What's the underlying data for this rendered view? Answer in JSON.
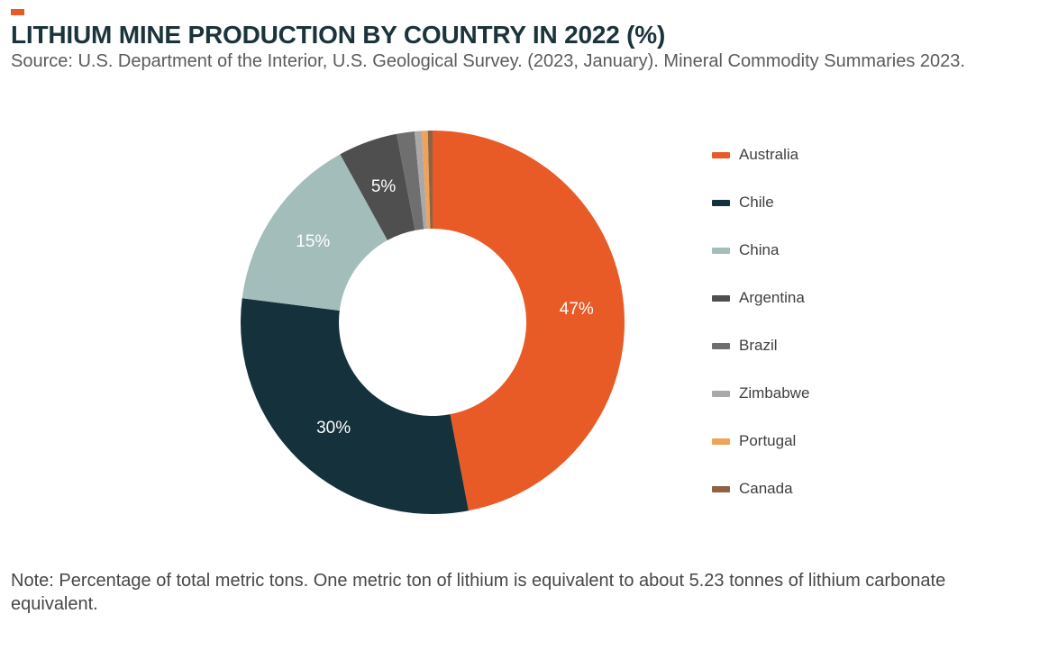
{
  "header": {
    "title": "LITHIUM MINE PRODUCTION BY COUNTRY IN 2022 (%)",
    "source": "Source: U.S. Department of the Interior, U.S. Geological Survey. (2023, January). Mineral Commodity Summaries 2023.",
    "accent_color": "#e85b27"
  },
  "chart_data": {
    "type": "pie",
    "donut": true,
    "title": "Lithium mine production by country in 2022 (%)",
    "start_angle_deg": 0,
    "direction": "clockwise",
    "legend_position": "right",
    "label_threshold_pct": 4,
    "labels_shown": [
      "47%",
      "30%",
      "15%",
      "5%"
    ],
    "series": [
      {
        "name": "Australia",
        "value": 47,
        "color": "#e85b27"
      },
      {
        "name": "Chile",
        "value": 30,
        "color": "#14313c"
      },
      {
        "name": "China",
        "value": 15,
        "color": "#a3bdbb"
      },
      {
        "name": "Argentina",
        "value": 5,
        "color": "#4f4f4f"
      },
      {
        "name": "Brazil",
        "value": 1.5,
        "color": "#6f6f6f"
      },
      {
        "name": "Zimbabwe",
        "value": 0.6,
        "color": "#a9a9a9"
      },
      {
        "name": "Portugal",
        "value": 0.5,
        "color": "#f0a257"
      },
      {
        "name": "Canada",
        "value": 0.4,
        "color": "#8e6244"
      }
    ]
  },
  "note": "Note: Percentage of total metric tons. One metric ton of lithium is equivalent to about 5.23 tonnes of lithium carbonate equivalent."
}
